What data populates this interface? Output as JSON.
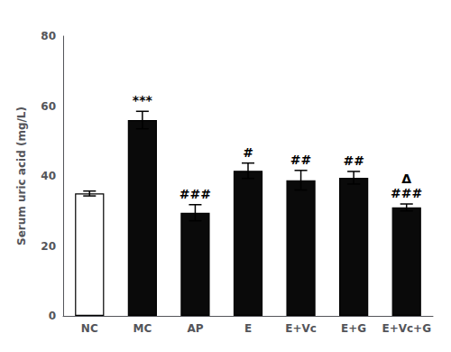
{
  "chart_data": {
    "type": "bar",
    "ylabel": "Serum uric acid (mg/L)",
    "categories": [
      "NC",
      "MC",
      "AP",
      "E",
      "E+Vc",
      "E+G",
      "E+Vc+G"
    ],
    "values": [
      35.0,
      56.0,
      29.5,
      41.5,
      38.8,
      39.5,
      31.0
    ],
    "errors": [
      0.7,
      2.5,
      2.3,
      2.2,
      2.8,
      1.8,
      1.0
    ],
    "colors": [
      "#ffffff",
      "#0a0a0a",
      "#0a0a0a",
      "#0a0a0a",
      "#0a0a0a",
      "#0a0a0a",
      "#0a0a0a"
    ],
    "ylim": [
      0,
      80
    ],
    "yticks": [
      0,
      20,
      40,
      60,
      80
    ],
    "grid": false,
    "annotations": [
      {
        "category": "MC",
        "text": "***"
      },
      {
        "category": "AP",
        "text": "###"
      },
      {
        "category": "E",
        "text": "#"
      },
      {
        "category": "E+Vc",
        "text": "##"
      },
      {
        "category": "E+G",
        "text": "##"
      },
      {
        "category": "E+Vc+G",
        "text": "###"
      },
      {
        "category": "E+Vc+G",
        "text": "Δ"
      }
    ]
  }
}
